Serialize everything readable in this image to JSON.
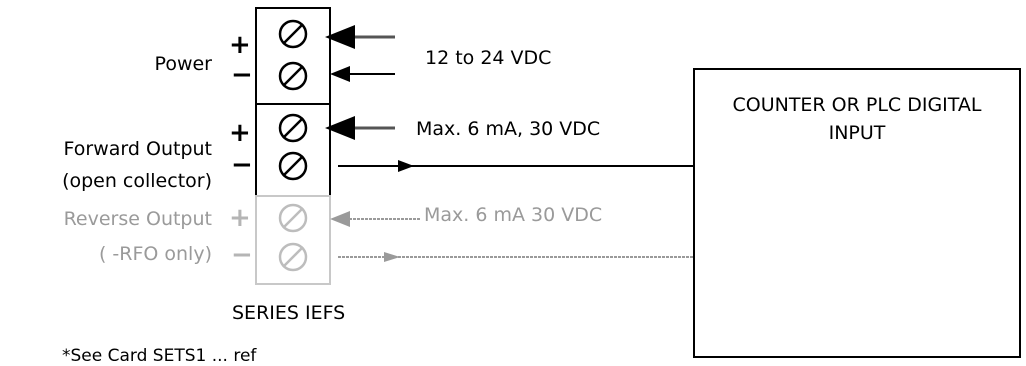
{
  "terminals": {
    "power": {
      "label": "Power",
      "plus": "+",
      "minus": "−",
      "spec": "12 to 24 VDC"
    },
    "forward_output": {
      "label_line1": "Forward Output",
      "label_line2": "(open collector)",
      "plus": "+",
      "minus": "−",
      "spec": "Max. 6 mA, 30 VDC"
    },
    "reverse_output": {
      "label_line1": "Reverse Output",
      "label_line2": "( -RFO only)",
      "plus": "+",
      "minus": "−",
      "spec": "Max. 6 mA 30 VDC"
    },
    "block_label": "SERIES IEFS"
  },
  "device": {
    "line1": "COUNTER OR PLC DIGITAL",
    "line2": "INPUT"
  },
  "colors": {
    "black": "#000000",
    "gray": "#9a9a9a",
    "light_gray": "#c8c8c8"
  },
  "footer_note": "*See Card SETS1 ... ref"
}
